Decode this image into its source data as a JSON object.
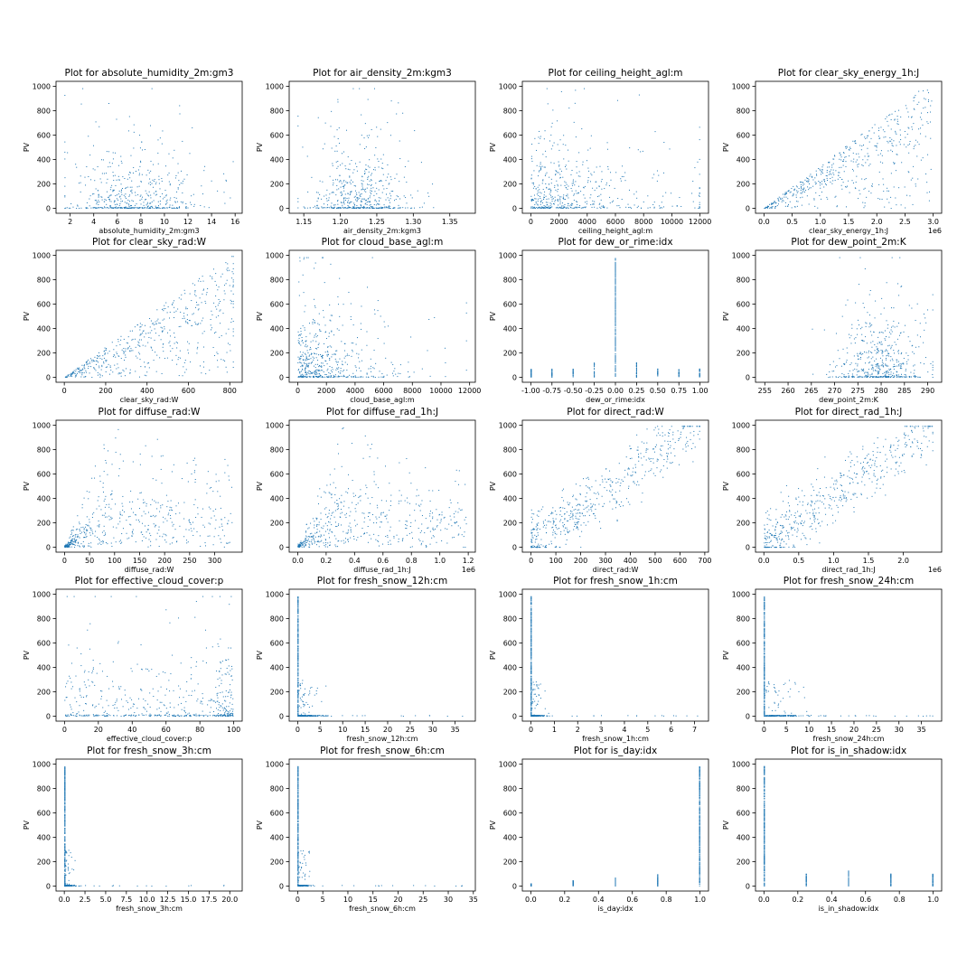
{
  "figure": {
    "point_color": "#1f77b4"
  },
  "chart_data": [
    {
      "type": "scatter",
      "title": "Plot for absolute_humidity_2m:gm3",
      "xlabel": "absolute_humidity_2m:gm3",
      "ylabel": "PV",
      "xlim": [
        0.8,
        16.6
      ],
      "ylim": [
        -40,
        1040
      ],
      "xticks": [
        2,
        4,
        6,
        8,
        10,
        12,
        14,
        16
      ],
      "yticks": [
        0,
        200,
        400,
        600,
        800,
        1000
      ],
      "offset": "",
      "pattern": "blob",
      "cx": 7.5,
      "spread": 2.8
    },
    {
      "type": "scatter",
      "title": "Plot for air_density_2m:kgm3",
      "xlabel": "air_density_2m:kgm3",
      "ylabel": "PV",
      "xlim": [
        1.13,
        1.385
      ],
      "ylim": [
        -40,
        1040
      ],
      "xticks": [
        1.15,
        1.2,
        1.25,
        1.3,
        1.35
      ],
      "yticks": [
        0,
        200,
        400,
        600,
        800,
        1000
      ],
      "offset": "",
      "pattern": "blob",
      "cx": 1.225,
      "spread": 0.035
    },
    {
      "type": "scatter",
      "title": "Plot for ceiling_height_agl:m",
      "xlabel": "ceiling_height_agl:m",
      "ylabel": "PV",
      "xlim": [
        -600,
        12600
      ],
      "ylim": [
        -40,
        1040
      ],
      "xticks": [
        0,
        2000,
        4000,
        6000,
        8000,
        10000,
        12000
      ],
      "yticks": [
        0,
        200,
        400,
        600,
        800,
        1000
      ],
      "offset": "",
      "pattern": "decay",
      "cx": 0,
      "spread": 3500
    },
    {
      "type": "scatter",
      "title": "Plot for clear_sky_energy_1h:J",
      "xlabel": "clear_sky_energy_1h:J",
      "ylabel": "PV",
      "xlim": [
        -0.15,
        3.15
      ],
      "ylim": [
        -40,
        1040
      ],
      "xticks": [
        0.0,
        0.5,
        1.0,
        1.5,
        2.0,
        2.5,
        3.0
      ],
      "yticks": [
        0,
        200,
        400,
        600,
        800,
        1000
      ],
      "offset": "1e6",
      "pattern": "wedge",
      "cx": 3.0,
      "spread": 0
    },
    {
      "type": "scatter",
      "title": "Plot for clear_sky_rad:W",
      "xlabel": "clear_sky_rad:W",
      "ylabel": "PV",
      "xlim": [
        -40,
        860
      ],
      "ylim": [
        -40,
        1040
      ],
      "xticks": [
        0,
        200,
        400,
        600,
        800
      ],
      "yticks": [
        0,
        200,
        400,
        600,
        800,
        1000
      ],
      "offset": "",
      "pattern": "wedge",
      "cx": 840,
      "spread": 0
    },
    {
      "type": "scatter",
      "title": "Plot for cloud_base_agl:m",
      "xlabel": "cloud_base_agl:m",
      "ylabel": "PV",
      "xlim": [
        -600,
        12400
      ],
      "ylim": [
        -40,
        1040
      ],
      "xticks": [
        0,
        2000,
        4000,
        6000,
        8000,
        10000,
        12000
      ],
      "yticks": [
        0,
        200,
        400,
        600,
        800,
        1000
      ],
      "offset": "",
      "pattern": "decay",
      "cx": 0,
      "spread": 2200
    },
    {
      "type": "scatter",
      "title": "Plot for dew_or_rime:idx",
      "xlabel": "dew_or_rime:idx",
      "ylabel": "PV",
      "xlim": [
        -1.1,
        1.1
      ],
      "ylim": [
        -40,
        1040
      ],
      "xticks": [
        -1.0,
        -0.75,
        -0.5,
        -0.25,
        0.0,
        0.25,
        0.5,
        0.75,
        1.0
      ],
      "yticks": [
        0,
        200,
        400,
        600,
        800,
        1000
      ],
      "offset": "",
      "pattern": "discrete",
      "cx": 0,
      "spread": 0
    },
    {
      "type": "scatter",
      "title": "Plot for dew_point_2m:K",
      "xlabel": "dew_point_2m:K",
      "ylabel": "PV",
      "xlim": [
        253,
        293
      ],
      "ylim": [
        -40,
        1040
      ],
      "xticks": [
        255,
        260,
        265,
        270,
        275,
        280,
        285,
        290
      ],
      "yticks": [
        0,
        200,
        400,
        600,
        800,
        1000
      ],
      "offset": "",
      "pattern": "blob",
      "cx": 280,
      "spread": 5
    },
    {
      "type": "scatter",
      "title": "Plot for diffuse_rad:W",
      "xlabel": "diffuse_rad:W",
      "ylabel": "PV",
      "xlim": [
        -17,
        355
      ],
      "ylim": [
        -40,
        1040
      ],
      "xticks": [
        0,
        50,
        100,
        150,
        200,
        250,
        300
      ],
      "yticks": [
        0,
        200,
        400,
        600,
        800,
        1000
      ],
      "offset": "",
      "pattern": "diffuse",
      "cx": 90,
      "spread": 0
    },
    {
      "type": "scatter",
      "title": "Plot for diffuse_rad_1h:J",
      "xlabel": "diffuse_rad_1h:J",
      "ylabel": "PV",
      "xlim": [
        -0.06,
        1.25
      ],
      "ylim": [
        -40,
        1040
      ],
      "xticks": [
        0.0,
        0.2,
        0.4,
        0.6,
        0.8,
        1.0,
        1.2
      ],
      "yticks": [
        0,
        200,
        400,
        600,
        800,
        1000
      ],
      "offset": "1e6",
      "pattern": "diffuse",
      "cx": 0.32,
      "spread": 0
    },
    {
      "type": "scatter",
      "title": "Plot for direct_rad:W",
      "xlabel": "direct_rad:W",
      "ylabel": "PV",
      "xlim": [
        -35,
        715
      ],
      "ylim": [
        -40,
        1040
      ],
      "xticks": [
        0,
        100,
        200,
        300,
        400,
        500,
        600,
        700
      ],
      "yticks": [
        0,
        200,
        400,
        600,
        800,
        1000
      ],
      "offset": "",
      "pattern": "linear",
      "cx": 690,
      "spread": 0
    },
    {
      "type": "scatter",
      "title": "Plot for direct_rad_1h:J",
      "xlabel": "direct_rad_1h:J",
      "ylabel": "PV",
      "xlim": [
        -0.12,
        2.55
      ],
      "ylim": [
        -40,
        1040
      ],
      "xticks": [
        0.0,
        0.5,
        1.0,
        1.5,
        2.0
      ],
      "yticks": [
        0,
        200,
        400,
        600,
        800,
        1000
      ],
      "offset": "1e6",
      "pattern": "linear",
      "cx": 2.45,
      "spread": 0
    },
    {
      "type": "scatter",
      "title": "Plot for effective_cloud_cover:p",
      "xlabel": "effective_cloud_cover:p",
      "ylabel": "PV",
      "xlim": [
        -5,
        105
      ],
      "ylim": [
        -40,
        1040
      ],
      "xticks": [
        0,
        20,
        40,
        60,
        80,
        100
      ],
      "yticks": [
        0,
        200,
        400,
        600,
        800,
        1000
      ],
      "offset": "",
      "pattern": "uniform",
      "cx": 50,
      "spread": 0
    },
    {
      "type": "scatter",
      "title": "Plot for fresh_snow_12h:cm",
      "xlabel": "fresh_snow_12h:cm",
      "ylabel": "PV",
      "xlim": [
        -1.9,
        39.5
      ],
      "ylim": [
        -40,
        1040
      ],
      "xticks": [
        0,
        5,
        10,
        15,
        20,
        25,
        30,
        35
      ],
      "yticks": [
        0,
        200,
        400,
        600,
        800,
        1000
      ],
      "offset": "",
      "pattern": "spike",
      "cx": 37.6,
      "spread": 2.5
    },
    {
      "type": "scatter",
      "title": "Plot for fresh_snow_1h:cm",
      "xlabel": "fresh_snow_1h:cm",
      "ylabel": "PV",
      "xlim": [
        -0.37,
        7.6
      ],
      "ylim": [
        -40,
        1040
      ],
      "xticks": [
        0,
        1,
        2,
        3,
        4,
        5,
        6,
        7
      ],
      "yticks": [
        0,
        200,
        400,
        600,
        800,
        1000
      ],
      "offset": "",
      "pattern": "spike",
      "cx": 7.2,
      "spread": 0.3
    },
    {
      "type": "scatter",
      "title": "Plot for fresh_snow_24h:cm",
      "xlabel": "fresh_snow_24h:cm",
      "ylabel": "PV",
      "xlim": [
        -1.9,
        39.5
      ],
      "ylim": [
        -40,
        1040
      ],
      "xticks": [
        0,
        5,
        10,
        15,
        20,
        25,
        30,
        35
      ],
      "yticks": [
        0,
        200,
        400,
        600,
        800,
        1000
      ],
      "offset": "",
      "pattern": "spike",
      "cx": 37.6,
      "spread": 4
    },
    {
      "type": "scatter",
      "title": "Plot for fresh_snow_3h:cm",
      "xlabel": "fresh_snow_3h:cm",
      "ylabel": "PV",
      "xlim": [
        -1.0,
        21.5
      ],
      "ylim": [
        -40,
        1040
      ],
      "xticks": [
        0.0,
        2.5,
        5.0,
        7.5,
        10.0,
        12.5,
        15.0,
        17.5,
        20.0
      ],
      "yticks": [
        0,
        200,
        400,
        600,
        800,
        1000
      ],
      "offset": "",
      "pattern": "spike",
      "cx": 20.4,
      "spread": 0.6
    },
    {
      "type": "scatter",
      "title": "Plot for fresh_snow_6h:cm",
      "xlabel": "fresh_snow_6h:cm",
      "ylabel": "PV",
      "xlim": [
        -1.7,
        35.4
      ],
      "ylim": [
        -40,
        1040
      ],
      "xticks": [
        0,
        5,
        10,
        15,
        20,
        25,
        30,
        35
      ],
      "yticks": [
        0,
        200,
        400,
        600,
        800,
        1000
      ],
      "offset": "",
      "pattern": "spike",
      "cx": 33.7,
      "spread": 1.2
    },
    {
      "type": "scatter",
      "title": "Plot for is_day:idx",
      "xlabel": "is_day:idx",
      "ylabel": "PV",
      "xlim": [
        -0.05,
        1.05
      ],
      "ylim": [
        -40,
        1040
      ],
      "xticks": [
        0.0,
        0.2,
        0.4,
        0.6,
        0.8,
        1.0
      ],
      "yticks": [
        0,
        200,
        400,
        600,
        800,
        1000
      ],
      "offset": "",
      "pattern": "isday",
      "cx": 1,
      "spread": 0
    },
    {
      "type": "scatter",
      "title": "Plot for is_in_shadow:idx",
      "xlabel": "is_in_shadow:idx",
      "ylabel": "PV",
      "xlim": [
        -0.05,
        1.05
      ],
      "ylim": [
        -40,
        1040
      ],
      "xticks": [
        0.0,
        0.2,
        0.4,
        0.6,
        0.8,
        1.0
      ],
      "yticks": [
        0,
        200,
        400,
        600,
        800,
        1000
      ],
      "offset": "",
      "pattern": "shadow",
      "cx": 0,
      "spread": 0
    }
  ]
}
